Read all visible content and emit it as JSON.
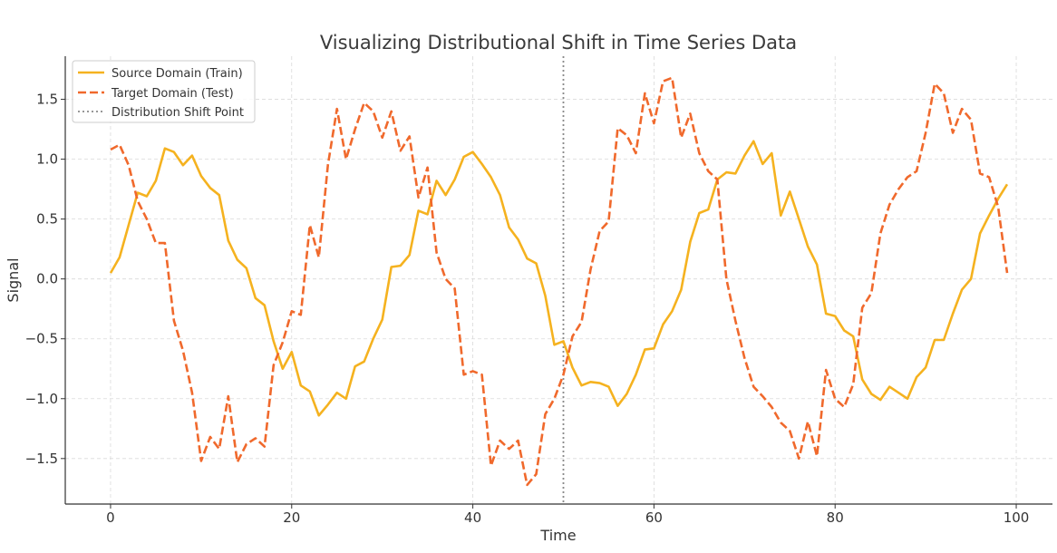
{
  "chart_data": {
    "type": "line",
    "title": "Visualizing Distributional Shift in Time Series Data",
    "xlabel": "Time",
    "ylabel": "Signal",
    "xlim": [
      -5,
      104
    ],
    "ylim": [
      -1.88,
      1.86
    ],
    "x_ticks": [
      0,
      20,
      40,
      60,
      80,
      100
    ],
    "y_ticks": [
      -1.5,
      -1.0,
      -0.5,
      0.0,
      0.5,
      1.0,
      1.5
    ],
    "x_tick_labels": [
      "0",
      "20",
      "40",
      "60",
      "80",
      "100"
    ],
    "y_tick_labels": [
      "−1.5",
      "−1.0",
      "−0.5",
      "0.0",
      "0.5",
      "1.0",
      "1.5"
    ],
    "grid": true,
    "legend_position": "top-left",
    "x": [
      0,
      1,
      2,
      3,
      4,
      5,
      6,
      7,
      8,
      9,
      10,
      11,
      12,
      13,
      14,
      15,
      16,
      17,
      18,
      19,
      20,
      21,
      22,
      23,
      24,
      25,
      26,
      27,
      28,
      29,
      30,
      31,
      32,
      33,
      34,
      35,
      36,
      37,
      38,
      39,
      40,
      41,
      42,
      43,
      44,
      45,
      46,
      47,
      48,
      49,
      50,
      51,
      52,
      53,
      54,
      55,
      56,
      57,
      58,
      59,
      60,
      61,
      62,
      63,
      64,
      65,
      66,
      67,
      68,
      69,
      70,
      71,
      72,
      73,
      74,
      75,
      76,
      77,
      78,
      79,
      80,
      81,
      82,
      83,
      84,
      85,
      86,
      87,
      88,
      89,
      90,
      91,
      92,
      93,
      94,
      95,
      96,
      97,
      98,
      99
    ],
    "series": [
      {
        "name": "Source Domain (Train)",
        "color": "#f5b21f",
        "style": "solid",
        "values": [
          0.05,
          0.18,
          0.45,
          0.72,
          0.69,
          0.82,
          1.09,
          1.06,
          0.95,
          1.03,
          0.86,
          0.76,
          0.7,
          0.32,
          0.16,
          0.09,
          -0.16,
          -0.22,
          -0.52,
          -0.75,
          -0.61,
          -0.89,
          -0.94,
          -1.14,
          -1.05,
          -0.95,
          -1.0,
          -0.73,
          -0.69,
          -0.5,
          -0.34,
          0.1,
          0.11,
          0.2,
          0.57,
          0.54,
          0.82,
          0.7,
          0.83,
          1.02,
          1.06,
          0.96,
          0.85,
          0.7,
          0.43,
          0.33,
          0.17,
          0.13,
          -0.14,
          -0.55,
          -0.52,
          -0.74,
          -0.89,
          -0.86,
          -0.87,
          -0.9,
          -1.06,
          -0.96,
          -0.8,
          -0.59,
          -0.58,
          -0.38,
          -0.27,
          -0.09,
          0.31,
          0.55,
          0.58,
          0.83,
          0.89,
          0.88,
          1.03,
          1.15,
          0.96,
          1.05,
          0.53,
          0.73,
          0.5,
          0.27,
          0.12,
          -0.29,
          -0.31,
          -0.43,
          -0.48,
          -0.84,
          -0.96,
          -1.01,
          -0.9,
          -0.95,
          -1.0,
          -0.82,
          -0.74,
          -0.51,
          -0.51,
          -0.29,
          -0.09,
          0.0,
          0.38,
          0.53,
          0.67,
          0.79
        ]
      },
      {
        "name": "Target Domain (Test)",
        "color": "#f0692c",
        "style": "dashed",
        "values": [
          1.08,
          1.12,
          0.95,
          0.65,
          0.5,
          0.3,
          0.3,
          -0.35,
          -0.6,
          -0.95,
          -1.52,
          -1.32,
          -1.42,
          -0.98,
          -1.53,
          -1.38,
          -1.33,
          -1.4,
          -0.72,
          -0.53,
          -0.27,
          -0.3,
          0.45,
          0.18,
          0.95,
          1.42,
          1.0,
          1.25,
          1.47,
          1.4,
          1.18,
          1.4,
          1.07,
          1.19,
          0.68,
          0.93,
          0.22,
          0.0,
          -0.08,
          -0.8,
          -0.77,
          -0.8,
          -1.56,
          -1.35,
          -1.42,
          -1.35,
          -1.72,
          -1.63,
          -1.13,
          -1.0,
          -0.8,
          -0.48,
          -0.36,
          0.08,
          0.4,
          0.48,
          1.26,
          1.2,
          1.05,
          1.55,
          1.3,
          1.65,
          1.68,
          1.18,
          1.38,
          1.05,
          0.9,
          0.83,
          0.0,
          -0.35,
          -0.66,
          -0.9,
          -0.98,
          -1.07,
          -1.2,
          -1.27,
          -1.5,
          -1.19,
          -1.48,
          -0.76,
          -1.0,
          -1.07,
          -0.88,
          -0.24,
          -0.12,
          0.38,
          0.62,
          0.75,
          0.85,
          0.9,
          1.22,
          1.63,
          1.55,
          1.22,
          1.42,
          1.33,
          0.88,
          0.85,
          0.6,
          0.05
        ]
      },
      {
        "name": "Distribution Shift Point",
        "color": "#8a8a8a",
        "style": "dotted",
        "vline_x": 50
      }
    ]
  }
}
